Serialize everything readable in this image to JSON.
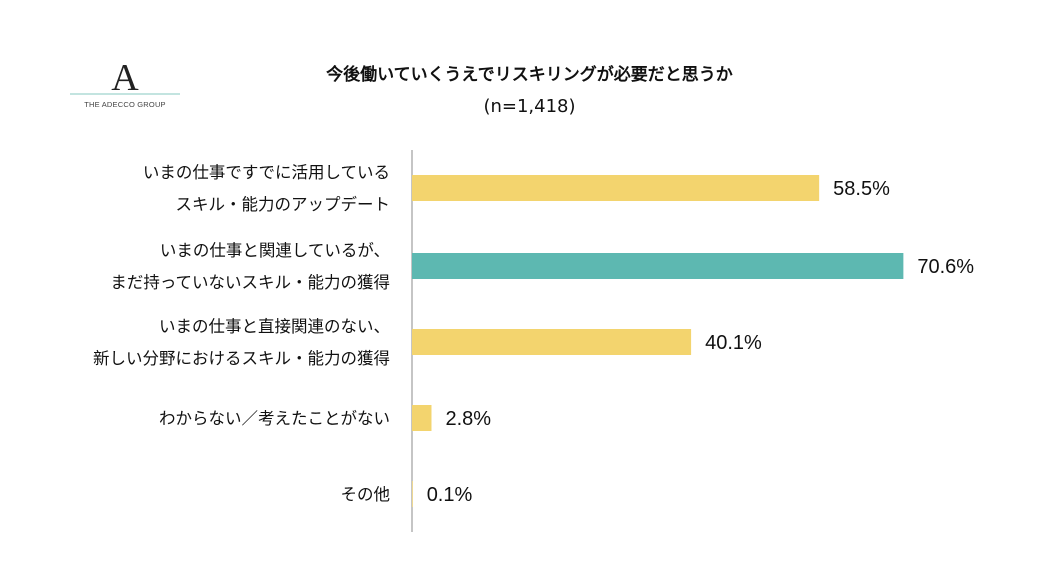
{
  "logo": {
    "mark": "A",
    "text": "THE ADECCO GROUP"
  },
  "colors": {
    "bar_default": "#F3D46E",
    "bar_highlight": "#5DB8B1",
    "axis": "#A6A6A6",
    "logo_line": "#9FD4CD"
  },
  "chart_data": {
    "type": "bar",
    "orientation": "horizontal",
    "title": "今後働いていくうえでリスキリングが必要だと思うか",
    "subtitle": "(n=1,418)",
    "categories": [
      [
        "いまの仕事ですでに活用している",
        "スキル・能力のアップデート"
      ],
      [
        "いまの仕事と関連しているが、",
        "まだ持っていないスキル・能力の獲得"
      ],
      [
        "いまの仕事と直接関連のない、",
        "新しい分野におけるスキル・能力の獲得"
      ],
      [
        "わからない／考えたことがない"
      ],
      [
        "その他"
      ]
    ],
    "values": [
      58.5,
      70.6,
      40.1,
      2.8,
      0.1
    ],
    "value_labels": [
      "58.5%",
      "70.6%",
      "40.1%",
      "2.8%",
      "0.1%"
    ],
    "highlight_index": 1,
    "xlim": [
      0,
      100
    ],
    "grid": false,
    "legend": "none"
  }
}
